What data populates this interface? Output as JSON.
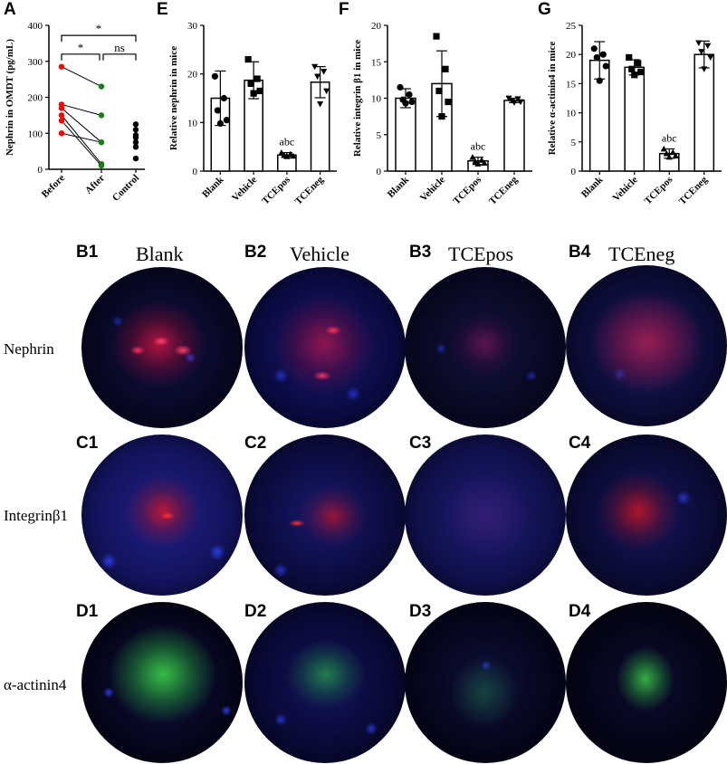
{
  "panel_letters": {
    "A": "A",
    "E": "E",
    "F": "F",
    "G": "G",
    "B1": "B1",
    "B2": "B2",
    "B3": "B3",
    "B4": "B4",
    "C1": "C1",
    "C2": "C2",
    "C3": "C3",
    "C4": "C4",
    "D1": "D1",
    "D2": "D2",
    "D3": "D3",
    "D4": "D4"
  },
  "column_headers": [
    "Blank",
    "Vehicle",
    "TCEpos",
    "TCEneg"
  ],
  "row_labels": [
    "Nephrin",
    "Integrinβ1",
    "α-actinin4"
  ],
  "colors": {
    "red_points": "#ff0000",
    "green_points": "#1a7f1a",
    "black": "#000000",
    "nephrin_stain": "#ff1a3c",
    "integrin_stain": "#ff1a1a",
    "actinin_stain": "#2fc32f",
    "nuclei": "#1530c8"
  },
  "chart_data": [
    {
      "type": "scatter",
      "panel": "A",
      "ylabel": "Nephrin in OMDT (pg/mL)",
      "ylim": [
        0,
        400
      ],
      "yticks": [
        "0",
        "100",
        "200",
        "300",
        "400"
      ],
      "categories": [
        "Before",
        "After",
        "Control"
      ],
      "paired": [
        {
          "before": 285,
          "after": 230
        },
        {
          "before": 180,
          "after": 150
        },
        {
          "before": 170,
          "after": 75
        },
        {
          "before": 150,
          "after": 15
        },
        {
          "before": 135,
          "after": 10
        },
        {
          "before": 100,
          "after": 75
        }
      ],
      "control": [
        125,
        110,
        95,
        88,
        75,
        62,
        30
      ],
      "annotations": [
        {
          "text": "*",
          "between": [
            "Before",
            "Control"
          ]
        },
        {
          "text": "*",
          "between": [
            "Before",
            "After"
          ]
        },
        {
          "text": "ns",
          "between": [
            "After",
            "Control"
          ]
        }
      ]
    },
    {
      "type": "bar",
      "panel": "E",
      "ylabel": "Relative nephrin in mice",
      "ylim": [
        0,
        30
      ],
      "yticks": [
        "0",
        "10",
        "20",
        "30"
      ],
      "categories": [
        "Blank",
        "Vehicle",
        "TCEpos",
        "TCEneg"
      ],
      "values": [
        15.0,
        18.7,
        3.3,
        18.3
      ],
      "errors": [
        5.6,
        3.8,
        0.5,
        3.2
      ],
      "markers": [
        "circle",
        "square",
        "triangle",
        "triangle-down"
      ],
      "points": [
        [
          19.5,
          15.0,
          12.5,
          10.5,
          9.8
        ],
        [
          23.0,
          19.0,
          18.0,
          16.5,
          16.0
        ],
        [
          3.8,
          3.5,
          3.3,
          3.1,
          3.0
        ],
        [
          21.5,
          20.5,
          19.5,
          16.5,
          13.8
        ]
      ],
      "annotations": [
        {
          "text": "abc",
          "category": "TCEpos"
        }
      ]
    },
    {
      "type": "bar",
      "panel": "F",
      "ylabel": "Relative integrin β1 in mice",
      "ylim": [
        0,
        20
      ],
      "yticks": [
        "0",
        "5",
        "10",
        "15",
        "20"
      ],
      "categories": [
        "Blank",
        "Vehicle",
        "TCEpos",
        "TCEneg"
      ],
      "values": [
        10.0,
        12.0,
        1.4,
        9.7
      ],
      "errors": [
        1.3,
        4.5,
        0.5,
        0.3
      ],
      "markers": [
        "circle",
        "square",
        "triangle",
        "triangle-down"
      ],
      "points": [
        [
          11.5,
          10.5,
          9.8,
          9.5,
          9.3
        ],
        [
          18.5,
          14.0,
          11.0,
          9.5,
          7.5
        ],
        [
          1.9,
          1.5,
          1.3,
          1.1,
          1.0
        ],
        [
          10.0,
          9.9,
          9.7,
          9.5,
          9.4
        ]
      ],
      "annotations": [
        {
          "text": "abc",
          "category": "TCEpos"
        }
      ]
    },
    {
      "type": "bar",
      "panel": "G",
      "ylabel": "Relative α-actinin4 in mice",
      "ylim": [
        0,
        25
      ],
      "yticks": [
        "0",
        "5",
        "10",
        "15",
        "20",
        "25"
      ],
      "categories": [
        "Blank",
        "Vehicle",
        "TCEpos",
        "TCEneg"
      ],
      "values": [
        19.0,
        17.8,
        3.0,
        20.0
      ],
      "errors": [
        3.2,
        1.3,
        0.8,
        2.3
      ],
      "markers": [
        "circle",
        "square",
        "triangle",
        "triangle-down"
      ],
      "points": [
        [
          21.0,
          20.0,
          19.5,
          18.0,
          15.5
        ],
        [
          19.5,
          18.5,
          17.5,
          17.0,
          16.5
        ],
        [
          3.8,
          3.2,
          3.0,
          2.6,
          2.4
        ],
        [
          22.0,
          21.5,
          20.5,
          19.5,
          17.5
        ]
      ],
      "annotations": [
        {
          "text": "abc",
          "category": "TCEpos"
        }
      ]
    }
  ]
}
